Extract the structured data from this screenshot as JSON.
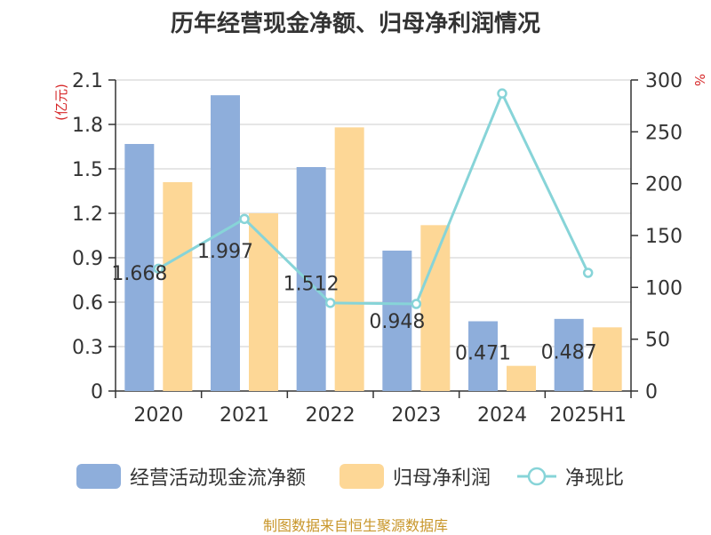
{
  "chart_data": {
    "type": "bar",
    "title": "历年经营现金净额、归母净利润情况",
    "categories": [
      "2020",
      "2021",
      "2022",
      "2023",
      "2024",
      "2025H1"
    ],
    "series": [
      {
        "name": "经营活动现金流净额",
        "type": "bar",
        "axis": "left",
        "values": [
          1.668,
          1.997,
          1.512,
          0.948,
          0.471,
          0.487
        ],
        "color": "#8eaedb"
      },
      {
        "name": "归母净利润",
        "type": "bar",
        "axis": "left",
        "values": [
          1.41,
          1.2,
          1.78,
          1.12,
          0.17,
          0.43
        ],
        "color": "#fdd796"
      },
      {
        "name": "净现比",
        "type": "line",
        "axis": "right",
        "values": [
          118,
          166,
          85,
          84,
          287,
          114
        ],
        "color": "#87d4d8"
      }
    ],
    "data_labels": [
      "1.668",
      "1.997",
      "1.512",
      "0.948",
      "0.471",
      "0.487"
    ],
    "left_axis": {
      "unit": "(亿元)",
      "min": 0,
      "max": 2.1,
      "ticks": [
        "0",
        "0.3",
        "0.6",
        "0.9",
        "1.2",
        "1.5",
        "1.8",
        "2.1"
      ]
    },
    "right_axis": {
      "unit": "%",
      "min": 0,
      "max": 300,
      "ticks": [
        "0",
        "50",
        "100",
        "150",
        "200",
        "250",
        "300"
      ]
    },
    "grid": true,
    "legend_position": "bottom"
  },
  "source": {
    "text": "制图数据来自恒生聚源数据库",
    "color": "#c8962a"
  },
  "colors": {
    "axis_unit": "#d62728",
    "grid": "#cccccc",
    "axis": "#333333",
    "text": "#333333"
  }
}
